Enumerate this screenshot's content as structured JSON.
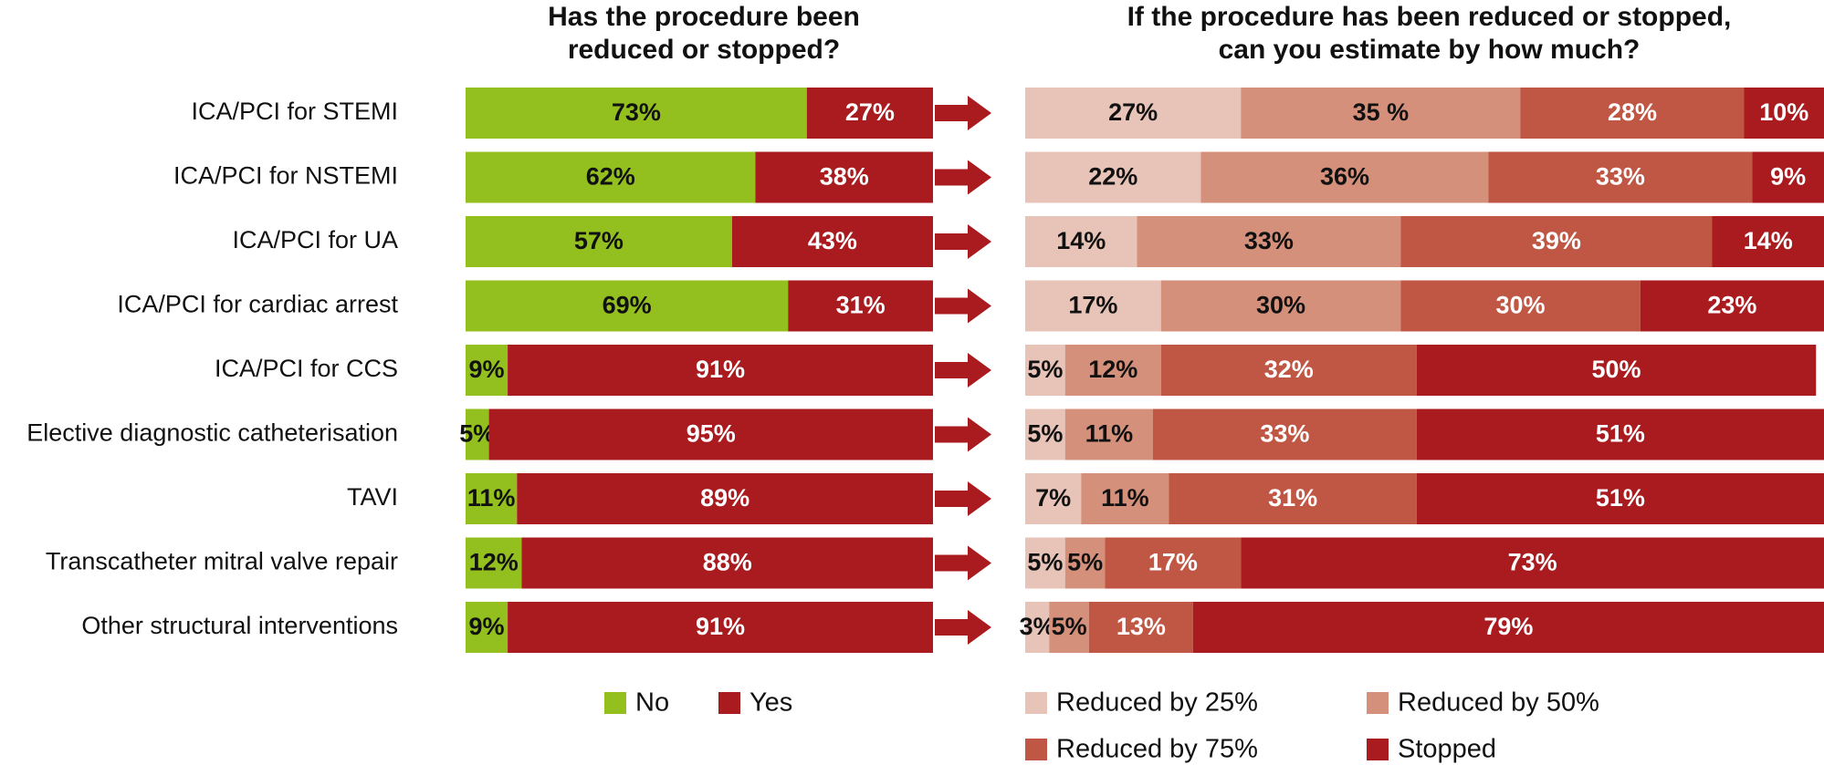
{
  "chart_data": [
    {
      "type": "bar",
      "orientation": "horizontal",
      "stacked": true,
      "title": "Has the procedure been reduced or stopped?",
      "title_lines": [
        "Has the procedure been",
        "reduced or stopped?"
      ],
      "categories": [
        "ICA/PCI for STEMI",
        "ICA/PCI for NSTEMI",
        "ICA/PCI for UA",
        "ICA/PCI for cardiac arrest",
        "ICA/PCI for CCS",
        "Elective diagnostic catheterisation",
        "TAVI",
        "Transcatheter mitral valve repair",
        "Other structural interventions"
      ],
      "series": [
        {
          "name": "No",
          "color": "#94c01f",
          "values": [
            73,
            62,
            57,
            69,
            9,
            5,
            11,
            12,
            9
          ]
        },
        {
          "name": "Yes",
          "color": "#a91b1e",
          "values": [
            27,
            38,
            43,
            31,
            91,
            95,
            89,
            88,
            91
          ]
        }
      ],
      "value_suffix": "%",
      "xlim": [
        0,
        100
      ],
      "legend_position": "bottom"
    },
    {
      "type": "bar",
      "orientation": "horizontal",
      "stacked": true,
      "title": "If the procedure has been reduced or stopped, can you estimate by how much?",
      "title_lines": [
        "If the procedure has been reduced or stopped,",
        "can you estimate by how much?"
      ],
      "categories": [
        "ICA/PCI for STEMI",
        "ICA/PCI for NSTEMI",
        "ICA/PCI for UA",
        "ICA/PCI for cardiac arrest",
        "ICA/PCI for CCS",
        "Elective diagnostic catheterisation",
        "TAVI",
        "Transcatheter mitral valve repair",
        "Other structural interventions"
      ],
      "series": [
        {
          "name": "Reduced by 25%",
          "color": "#e8c4b8",
          "values": [
            27,
            22,
            14,
            17,
            5,
            5,
            7,
            5,
            3
          ]
        },
        {
          "name": "Reduced by 50%",
          "color": "#d4907a",
          "values": [
            35,
            36,
            33,
            30,
            12,
            11,
            11,
            5,
            5
          ]
        },
        {
          "name": "Reduced by 75%",
          "color": "#c05644",
          "values": [
            28,
            33,
            39,
            30,
            32,
            33,
            31,
            17,
            13
          ]
        },
        {
          "name": "Stopped",
          "color": "#a91b1e",
          "values": [
            10,
            9,
            14,
            23,
            50,
            51,
            51,
            73,
            79
          ]
        }
      ],
      "value_labels": [
        [
          "27%",
          "35 %",
          "28%",
          "10%"
        ],
        [
          "22%",
          "36%",
          "33%",
          "9%"
        ],
        [
          "14%",
          "33%",
          "39%",
          "14%"
        ],
        [
          "17%",
          "30%",
          "30%",
          "23%"
        ],
        [
          "5%",
          "12%",
          "32%",
          "50%"
        ],
        [
          "5%",
          "11%",
          "33%",
          "51%"
        ],
        [
          "7%",
          "11%",
          "31%",
          "51%"
        ],
        [
          "5%",
          "5%",
          "17%",
          "73%"
        ],
        [
          "3%",
          "5%",
          "13%",
          "79%"
        ]
      ],
      "value_suffix": "%",
      "xlim": [
        0,
        100
      ],
      "legend_position": "bottom"
    }
  ],
  "arrow_color": "#a91b1e"
}
